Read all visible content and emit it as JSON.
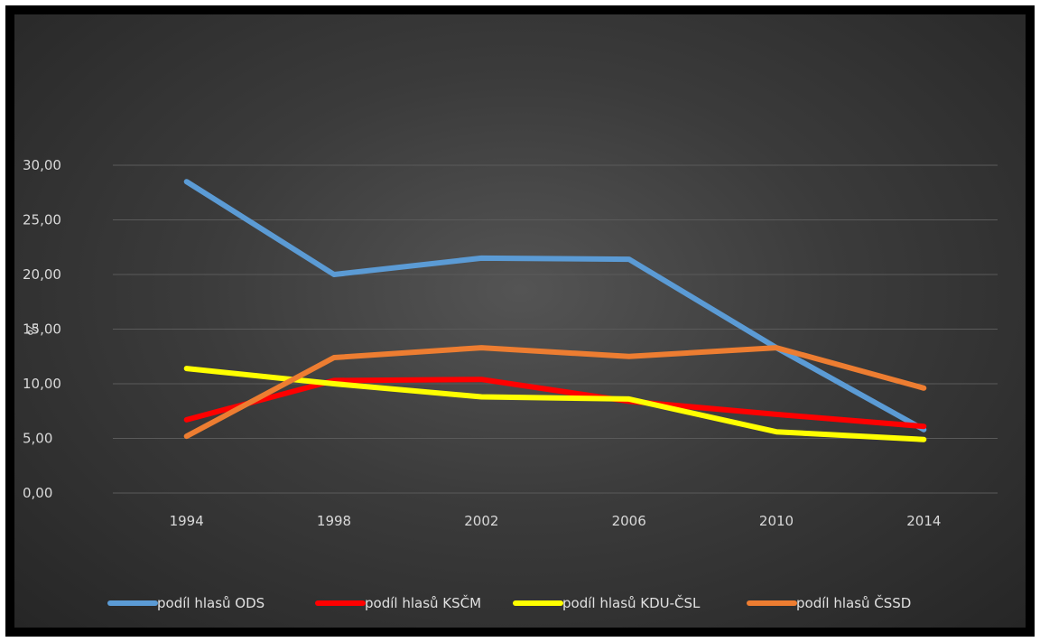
{
  "chart_data": {
    "type": "line",
    "title": "",
    "xlabel": "",
    "ylabel": "%",
    "categories": [
      "1994",
      "1998",
      "2002",
      "2006",
      "2010",
      "2014"
    ],
    "ylim": [
      0,
      30
    ],
    "yticks": [
      0,
      5,
      10,
      15,
      20,
      25,
      30
    ],
    "ytick_labels": [
      "0,00",
      "5,00",
      "10,00",
      "15,00",
      "20,00",
      "25,00",
      "30,00"
    ],
    "grid": true,
    "legend_position": "bottom",
    "series": [
      {
        "name": "podíl hlasů ODS",
        "color": "#5b9bd5",
        "values": [
          28.5,
          20.0,
          21.5,
          21.4,
          13.3,
          5.8
        ]
      },
      {
        "name": "podíl hlasů KSČM",
        "color": "#ff0000",
        "values": [
          6.7,
          10.3,
          10.4,
          8.4,
          7.2,
          6.1
        ]
      },
      {
        "name": "podíl hlasů KDU-ČSL",
        "color": "#ffff00",
        "values": [
          11.4,
          10.0,
          8.8,
          8.6,
          5.6,
          4.9
        ]
      },
      {
        "name": "podíl hlasů ČSSD",
        "color": "#ed7d31",
        "values": [
          5.2,
          12.4,
          13.3,
          12.5,
          13.3,
          9.6
        ]
      }
    ]
  }
}
